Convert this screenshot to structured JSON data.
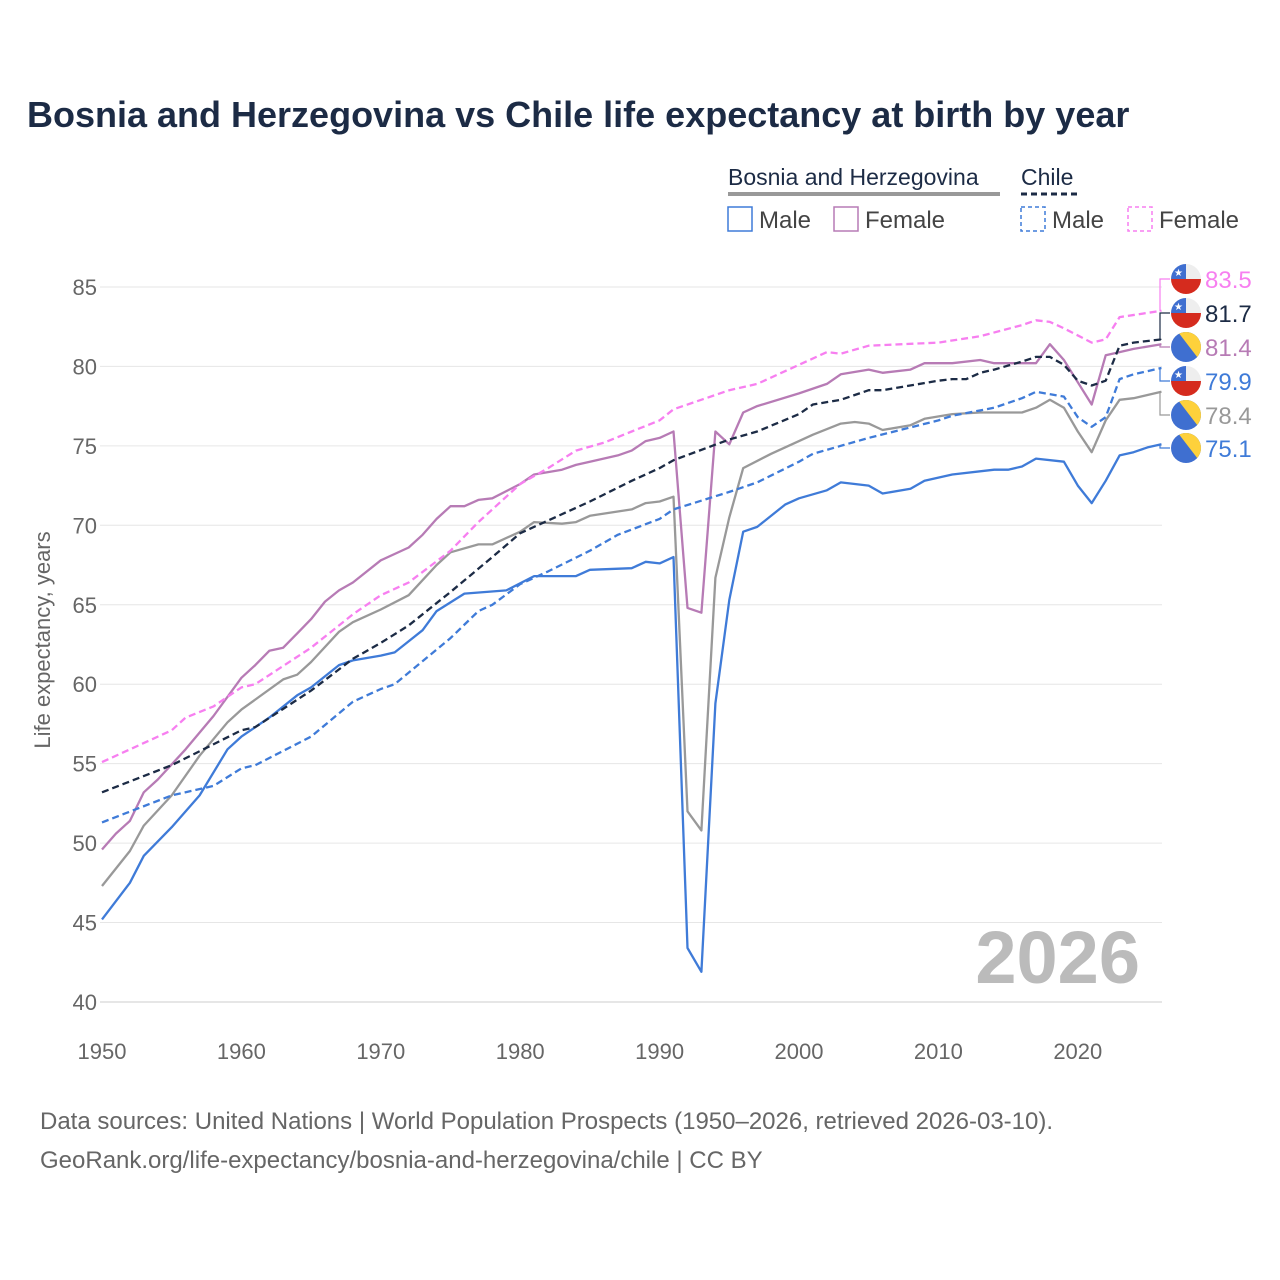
{
  "chart_data": {
    "type": "line",
    "title": "Bosnia and Herzegovina vs Chile life expectancy at birth by year",
    "xlabel": "",
    "ylabel": "Life expectancy, years",
    "xlim": [
      1950,
      2026
    ],
    "ylim": [
      40,
      86
    ],
    "x_ticks": [
      1950,
      1960,
      1970,
      1980,
      1990,
      2000,
      2010,
      2020
    ],
    "y_ticks": [
      40,
      45,
      50,
      55,
      60,
      65,
      70,
      75,
      80,
      85
    ],
    "grid": "horizontal",
    "watermark_year": "2026",
    "legend": {
      "placement": "top-right",
      "groups": [
        {
          "label": "Bosnia and Herzegovina",
          "male": "Male",
          "female": "Female"
        },
        {
          "label": "Chile",
          "male": "Male",
          "female": "Female"
        }
      ]
    },
    "series": [
      {
        "name": "Chile Female",
        "country": "Chile",
        "color": "#f77ff0",
        "dash": true,
        "end_label": "83.5",
        "flag": "chile",
        "points": [
          [
            1950,
            55.1
          ],
          [
            1955,
            57.1
          ],
          [
            1956,
            57.9
          ],
          [
            1958,
            58.6
          ],
          [
            1960,
            59.8
          ],
          [
            1961,
            60.0
          ],
          [
            1965,
            62.3
          ],
          [
            1968,
            64.4
          ],
          [
            1970,
            65.6
          ],
          [
            1972,
            66.4
          ],
          [
            1975,
            68.4
          ],
          [
            1977,
            70.2
          ],
          [
            1980,
            72.6
          ],
          [
            1982,
            73.6
          ],
          [
            1984,
            74.7
          ],
          [
            1986,
            75.2
          ],
          [
            1988,
            75.9
          ],
          [
            1990,
            76.6
          ],
          [
            1991,
            77.3
          ],
          [
            1995,
            78.5
          ],
          [
            1997,
            78.9
          ],
          [
            2000,
            80.1
          ],
          [
            2002,
            80.9
          ],
          [
            2003,
            80.8
          ],
          [
            2005,
            81.3
          ],
          [
            2010,
            81.5
          ],
          [
            2013,
            81.9
          ],
          [
            2016,
            82.6
          ],
          [
            2017,
            82.9
          ],
          [
            2018,
            82.8
          ],
          [
            2019,
            82.4
          ],
          [
            2021,
            81.5
          ],
          [
            2022,
            81.7
          ],
          [
            2023,
            83.1
          ],
          [
            2026,
            83.5
          ]
        ]
      },
      {
        "name": "Chile",
        "country": "Chile",
        "color": "#1c2b45",
        "dash": true,
        "end_label": "81.7",
        "flag": "chile",
        "points": [
          [
            1950,
            53.2
          ],
          [
            1955,
            54.9
          ],
          [
            1960,
            57.1
          ],
          [
            1961,
            57.3
          ],
          [
            1965,
            59.6
          ],
          [
            1968,
            61.6
          ],
          [
            1970,
            62.6
          ],
          [
            1972,
            63.7
          ],
          [
            1975,
            65.8
          ],
          [
            1978,
            68.0
          ],
          [
            1980,
            69.5
          ],
          [
            1982,
            70.3
          ],
          [
            1985,
            71.5
          ],
          [
            1988,
            72.8
          ],
          [
            1990,
            73.6
          ],
          [
            1991,
            74.1
          ],
          [
            1995,
            75.4
          ],
          [
            1997,
            75.9
          ],
          [
            2000,
            77.0
          ],
          [
            2001,
            77.6
          ],
          [
            2003,
            77.9
          ],
          [
            2005,
            78.5
          ],
          [
            2006,
            78.5
          ],
          [
            2010,
            79.1
          ],
          [
            2011,
            79.2
          ],
          [
            2012,
            79.2
          ],
          [
            2013,
            79.6
          ],
          [
            2014,
            79.8
          ],
          [
            2016,
            80.3
          ],
          [
            2017,
            80.6
          ],
          [
            2018,
            80.6
          ],
          [
            2019,
            80.1
          ],
          [
            2020,
            79.1
          ],
          [
            2021,
            78.8
          ],
          [
            2022,
            79.1
          ],
          [
            2023,
            81.3
          ],
          [
            2024,
            81.5
          ],
          [
            2026,
            81.7
          ]
        ]
      },
      {
        "name": "Bosnia and Herzegovina Female",
        "country": "Bosnia and Herzegovina",
        "color": "#b77bb5",
        "dash": false,
        "end_label": "81.4",
        "flag": "bosnia",
        "points": [
          [
            1950,
            49.6
          ],
          [
            1951,
            50.6
          ],
          [
            1952,
            51.4
          ],
          [
            1953,
            53.2
          ],
          [
            1954,
            54.0
          ],
          [
            1956,
            55.9
          ],
          [
            1958,
            58.0
          ],
          [
            1960,
            60.4
          ],
          [
            1961,
            61.2
          ],
          [
            1962,
            62.1
          ],
          [
            1963,
            62.3
          ],
          [
            1964,
            63.2
          ],
          [
            1965,
            64.1
          ],
          [
            1966,
            65.2
          ],
          [
            1967,
            65.9
          ],
          [
            1968,
            66.4
          ],
          [
            1970,
            67.8
          ],
          [
            1972,
            68.6
          ],
          [
            1973,
            69.4
          ],
          [
            1974,
            70.4
          ],
          [
            1975,
            71.2
          ],
          [
            1976,
            71.2
          ],
          [
            1977,
            71.6
          ],
          [
            1978,
            71.7
          ],
          [
            1980,
            72.6
          ],
          [
            1981,
            73.2
          ],
          [
            1983,
            73.5
          ],
          [
            1984,
            73.8
          ],
          [
            1985,
            74.0
          ],
          [
            1987,
            74.4
          ],
          [
            1988,
            74.7
          ],
          [
            1989,
            75.3
          ],
          [
            1990,
            75.5
          ],
          [
            1991,
            75.9
          ],
          [
            1992,
            64.8
          ],
          [
            1993,
            64.5
          ],
          [
            1994,
            75.9
          ],
          [
            1995,
            75.1
          ],
          [
            1996,
            77.1
          ],
          [
            1997,
            77.5
          ],
          [
            2000,
            78.3
          ],
          [
            2002,
            78.9
          ],
          [
            2003,
            79.5
          ],
          [
            2005,
            79.8
          ],
          [
            2006,
            79.6
          ],
          [
            2008,
            79.8
          ],
          [
            2009,
            80.2
          ],
          [
            2011,
            80.2
          ],
          [
            2013,
            80.4
          ],
          [
            2014,
            80.2
          ],
          [
            2017,
            80.2
          ],
          [
            2018,
            81.4
          ],
          [
            2019,
            80.4
          ],
          [
            2021,
            77.6
          ],
          [
            2022,
            80.7
          ],
          [
            2023,
            80.9
          ],
          [
            2024,
            81.1
          ],
          [
            2026,
            81.4
          ]
        ]
      },
      {
        "name": "Chile Male",
        "country": "Chile",
        "color": "#3f7bd8",
        "dash": true,
        "end_label": "79.9",
        "flag": "chile",
        "points": [
          [
            1950,
            51.3
          ],
          [
            1955,
            53.0
          ],
          [
            1958,
            53.6
          ],
          [
            1960,
            54.7
          ],
          [
            1961,
            54.9
          ],
          [
            1965,
            56.7
          ],
          [
            1968,
            58.9
          ],
          [
            1970,
            59.7
          ],
          [
            1971,
            60.0
          ],
          [
            1975,
            62.9
          ],
          [
            1977,
            64.6
          ],
          [
            1978,
            65.0
          ],
          [
            1980,
            66.3
          ],
          [
            1982,
            67.1
          ],
          [
            1985,
            68.4
          ],
          [
            1987,
            69.4
          ],
          [
            1990,
            70.4
          ],
          [
            1991,
            71.0
          ],
          [
            1995,
            72.1
          ],
          [
            1997,
            72.7
          ],
          [
            2000,
            74.0
          ],
          [
            2001,
            74.5
          ],
          [
            2005,
            75.5
          ],
          [
            2010,
            76.6
          ],
          [
            2011,
            76.9
          ],
          [
            2014,
            77.4
          ],
          [
            2016,
            78.0
          ],
          [
            2017,
            78.4
          ],
          [
            2019,
            78.1
          ],
          [
            2020,
            76.8
          ],
          [
            2021,
            76.2
          ],
          [
            2022,
            76.8
          ],
          [
            2023,
            79.2
          ],
          [
            2024,
            79.5
          ],
          [
            2026,
            79.9
          ]
        ]
      },
      {
        "name": "Bosnia and Herzegovina",
        "country": "Bosnia and Herzegovina",
        "color": "#999999",
        "dash": false,
        "end_label": "78.4",
        "flag": "bosnia",
        "points": [
          [
            1950,
            47.3
          ],
          [
            1952,
            49.5
          ],
          [
            1953,
            51.1
          ],
          [
            1955,
            53.0
          ],
          [
            1957,
            55.5
          ],
          [
            1959,
            57.6
          ],
          [
            1960,
            58.4
          ],
          [
            1963,
            60.3
          ],
          [
            1964,
            60.6
          ],
          [
            1965,
            61.4
          ],
          [
            1967,
            63.3
          ],
          [
            1968,
            63.9
          ],
          [
            1970,
            64.7
          ],
          [
            1972,
            65.6
          ],
          [
            1974,
            67.5
          ],
          [
            1975,
            68.3
          ],
          [
            1977,
            68.8
          ],
          [
            1978,
            68.8
          ],
          [
            1980,
            69.6
          ],
          [
            1981,
            70.2
          ],
          [
            1983,
            70.1
          ],
          [
            1984,
            70.2
          ],
          [
            1985,
            70.6
          ],
          [
            1988,
            71.0
          ],
          [
            1989,
            71.4
          ],
          [
            1990,
            71.5
          ],
          [
            1991,
            71.8
          ],
          [
            1992,
            52.0
          ],
          [
            1993,
            50.8
          ],
          [
            1994,
            66.7
          ],
          [
            1995,
            70.5
          ],
          [
            1996,
            73.6
          ],
          [
            1998,
            74.5
          ],
          [
            2000,
            75.3
          ],
          [
            2001,
            75.7
          ],
          [
            2003,
            76.4
          ],
          [
            2004,
            76.5
          ],
          [
            2005,
            76.4
          ],
          [
            2006,
            76.0
          ],
          [
            2008,
            76.3
          ],
          [
            2009,
            76.7
          ],
          [
            2011,
            77.0
          ],
          [
            2013,
            77.1
          ],
          [
            2016,
            77.1
          ],
          [
            2017,
            77.4
          ],
          [
            2018,
            77.9
          ],
          [
            2019,
            77.4
          ],
          [
            2020,
            75.9
          ],
          [
            2021,
            74.6
          ],
          [
            2022,
            76.6
          ],
          [
            2023,
            77.9
          ],
          [
            2024,
            78.0
          ],
          [
            2025,
            78.2
          ],
          [
            2026,
            78.4
          ]
        ]
      },
      {
        "name": "Bosnia and Herzegovina Male",
        "country": "Bosnia and Herzegovina",
        "color": "#3f7bd8",
        "dash": false,
        "end_label": "75.1",
        "flag": "bosnia",
        "points": [
          [
            1950,
            45.2
          ],
          [
            1952,
            47.5
          ],
          [
            1953,
            49.2
          ],
          [
            1955,
            51.0
          ],
          [
            1957,
            53.0
          ],
          [
            1959,
            55.9
          ],
          [
            1960,
            56.7
          ],
          [
            1962,
            57.9
          ],
          [
            1964,
            59.3
          ],
          [
            1965,
            59.8
          ],
          [
            1967,
            61.2
          ],
          [
            1968,
            61.5
          ],
          [
            1970,
            61.8
          ],
          [
            1971,
            62.0
          ],
          [
            1973,
            63.4
          ],
          [
            1974,
            64.6
          ],
          [
            1976,
            65.7
          ],
          [
            1979,
            65.9
          ],
          [
            1981,
            66.8
          ],
          [
            1984,
            66.8
          ],
          [
            1985,
            67.2
          ],
          [
            1988,
            67.3
          ],
          [
            1989,
            67.7
          ],
          [
            1990,
            67.6
          ],
          [
            1991,
            68.0
          ],
          [
            1992,
            43.4
          ],
          [
            1993,
            41.9
          ],
          [
            1994,
            58.8
          ],
          [
            1995,
            65.3
          ],
          [
            1996,
            69.6
          ],
          [
            1997,
            69.9
          ],
          [
            1999,
            71.3
          ],
          [
            2000,
            71.7
          ],
          [
            2002,
            72.2
          ],
          [
            2003,
            72.7
          ],
          [
            2005,
            72.5
          ],
          [
            2006,
            72.0
          ],
          [
            2008,
            72.3
          ],
          [
            2009,
            72.8
          ],
          [
            2011,
            73.2
          ],
          [
            2014,
            73.5
          ],
          [
            2015,
            73.5
          ],
          [
            2016,
            73.7
          ],
          [
            2017,
            74.2
          ],
          [
            2019,
            74.0
          ],
          [
            2020,
            72.5
          ],
          [
            2021,
            71.4
          ],
          [
            2022,
            72.8
          ],
          [
            2023,
            74.4
          ],
          [
            2024,
            74.6
          ],
          [
            2025,
            74.9
          ],
          [
            2026,
            75.1
          ]
        ]
      }
    ]
  },
  "footer": {
    "line1": "Data sources: United Nations | World Population Prospects (1950–2026, retrieved 2026-03-10).",
    "line2": "GeoRank.org/life-expectancy/bosnia-and-herzegovina/chile | CC BY"
  }
}
